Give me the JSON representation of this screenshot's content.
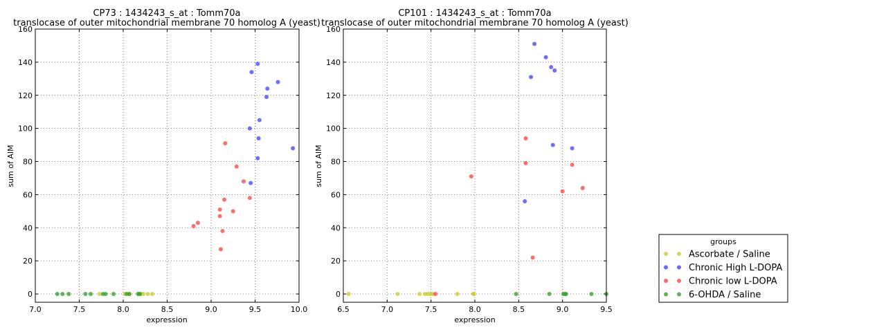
{
  "chart_data": [
    {
      "type": "scatter",
      "title": "CP73 : 1434243_s_at : Tomm70a",
      "subtitle": "translocase of outer mitochondrial membrane 70 homolog A (yeast)",
      "xlabel": "expression",
      "ylabel": "sum of AIM",
      "xlim": [
        7.0,
        10.0
      ],
      "ylim": [
        -5,
        160
      ],
      "xticks": [
        "7.0",
        "7.5",
        "8.0",
        "8.5",
        "9.0",
        "9.5",
        "10.0"
      ],
      "yticks": [
        "0",
        "20",
        "40",
        "60",
        "80",
        "100",
        "120",
        "140",
        "160"
      ],
      "grid": true,
      "series": [
        {
          "name": "Ascorbate / Saline",
          "color": "#cccc33",
          "points": [
            [
              7.73,
              0
            ],
            [
              8.02,
              0
            ],
            [
              8.07,
              0
            ],
            [
              8.17,
              0
            ],
            [
              8.2,
              0
            ],
            [
              8.23,
              0
            ],
            [
              8.28,
              0
            ],
            [
              8.33,
              0
            ]
          ]
        },
        {
          "name": "Chronic High L-DOPA",
          "color": "#4444ff",
          "points": [
            [
              9.46,
              134
            ],
            [
              9.53,
              139
            ],
            [
              9.63,
              119
            ],
            [
              9.64,
              124
            ],
            [
              9.76,
              128
            ],
            [
              9.44,
              100
            ],
            [
              9.55,
              105
            ],
            [
              9.54,
              94
            ],
            [
              9.93,
              88
            ],
            [
              9.53,
              82
            ],
            [
              9.45,
              67
            ]
          ]
        },
        {
          "name": "Chronic low L-DOPA",
          "color": "#ff4444",
          "points": [
            [
              9.16,
              91
            ],
            [
              9.29,
              77
            ],
            [
              9.37,
              68
            ],
            [
              9.15,
              57
            ],
            [
              9.44,
              58
            ],
            [
              9.1,
              51
            ],
            [
              9.25,
              50
            ],
            [
              9.1,
              47
            ],
            [
              8.85,
              43
            ],
            [
              8.8,
              41
            ],
            [
              9.13,
              38
            ],
            [
              9.11,
              27
            ]
          ]
        },
        {
          "name": "6-OHDA / Saline",
          "color": "#33a02c",
          "points": [
            [
              7.25,
              0
            ],
            [
              7.31,
              0
            ],
            [
              7.38,
              0
            ],
            [
              7.57,
              0
            ],
            [
              7.63,
              0
            ],
            [
              7.77,
              0
            ],
            [
              7.8,
              0
            ],
            [
              7.89,
              0
            ],
            [
              8.04,
              0
            ],
            [
              8.07,
              0
            ],
            [
              8.17,
              0
            ],
            [
              8.19,
              0
            ]
          ]
        }
      ]
    },
    {
      "type": "scatter",
      "title": "CP101 : 1434243_s_at : Tomm70a",
      "subtitle": "translocase of outer mitochondrial membrane 70 homolog A (yeast)",
      "xlabel": "expression",
      "ylabel": "sum of AIM",
      "xlim": [
        6.5,
        9.5
      ],
      "ylim": [
        -5,
        160
      ],
      "xticks": [
        "6.5",
        "7.0",
        "7.5",
        "8.0",
        "8.5",
        "9.0",
        "9.5"
      ],
      "yticks": [
        "0",
        "20",
        "40",
        "60",
        "80",
        "100",
        "120",
        "140",
        "160"
      ],
      "grid": true,
      "series": [
        {
          "name": "Ascorbate / Saline",
          "color": "#cccc33",
          "points": [
            [
              6.56,
              0
            ],
            [
              7.12,
              0
            ],
            [
              7.37,
              0
            ],
            [
              7.43,
              0
            ],
            [
              7.46,
              0
            ],
            [
              7.49,
              0
            ],
            [
              7.52,
              0
            ],
            [
              7.8,
              0
            ],
            [
              7.98,
              0
            ],
            [
              7.99,
              0
            ]
          ]
        },
        {
          "name": "Chronic High L-DOPA",
          "color": "#4444ff",
          "points": [
            [
              8.68,
              151
            ],
            [
              8.81,
              143
            ],
            [
              8.64,
              131
            ],
            [
              8.87,
              137
            ],
            [
              8.91,
              135
            ],
            [
              8.89,
              90
            ],
            [
              9.11,
              88
            ],
            [
              8.57,
              56
            ]
          ]
        },
        {
          "name": "Chronic low L-DOPA",
          "color": "#ff4444",
          "points": [
            [
              8.58,
              94
            ],
            [
              8.58,
              79
            ],
            [
              7.96,
              71
            ],
            [
              9.11,
              78
            ],
            [
              9.0,
              62
            ],
            [
              9.23,
              64
            ],
            [
              8.66,
              22
            ],
            [
              7.55,
              0
            ]
          ]
        },
        {
          "name": "6-OHDA / Saline",
          "color": "#33a02c",
          "points": [
            [
              8.47,
              0
            ],
            [
              8.85,
              0
            ],
            [
              9.01,
              0
            ],
            [
              9.03,
              0
            ],
            [
              9.04,
              0
            ],
            [
              9.33,
              0
            ],
            [
              9.5,
              0
            ]
          ]
        }
      ]
    }
  ],
  "legend": {
    "title": "groups",
    "placement": "bottom-right outside",
    "items": [
      {
        "label": "Ascorbate / Saline",
        "color": "#cccc33"
      },
      {
        "label": "Chronic High L-DOPA",
        "color": "#4444ff"
      },
      {
        "label": "Chronic low L-DOPA",
        "color": "#ff4444"
      },
      {
        "label": "6-OHDA / Saline",
        "color": "#33a02c"
      }
    ]
  }
}
